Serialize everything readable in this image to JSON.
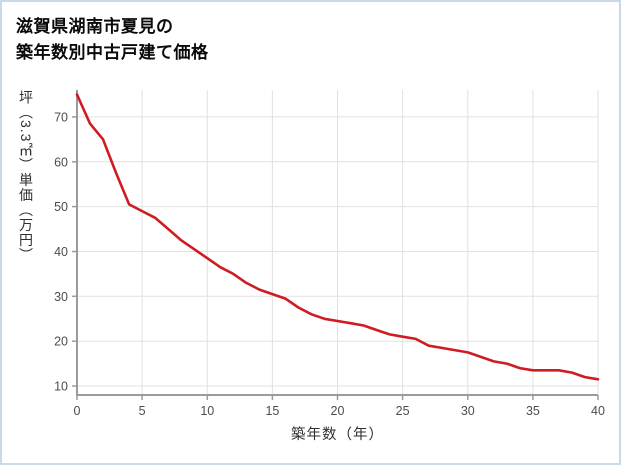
{
  "title": {
    "line1": "滋賀県湖南市夏見の",
    "line2": "築年数別中古戸建て価格"
  },
  "chart_data": {
    "type": "line",
    "title": "滋賀県湖南市夏見の築年数別中古戸建て価格",
    "xlabel": "築年数（年）",
    "ylabel": "坪（3.3㎡）単価（万円）",
    "x": [
      0,
      1,
      2,
      3,
      4,
      5,
      6,
      7,
      8,
      9,
      10,
      11,
      12,
      13,
      14,
      15,
      16,
      17,
      18,
      19,
      20,
      21,
      22,
      23,
      24,
      25,
      26,
      27,
      28,
      29,
      30,
      31,
      32,
      33,
      34,
      35,
      36,
      37,
      38,
      39,
      40
    ],
    "values": [
      75,
      68.5,
      65,
      57.5,
      50.5,
      49,
      47.5,
      45,
      42.5,
      40.5,
      38.5,
      36.5,
      35,
      33,
      31.5,
      30.5,
      29.5,
      27.5,
      26,
      25,
      24.5,
      24,
      23.5,
      22.5,
      21.5,
      21,
      20.5,
      19,
      18.5,
      18,
      17.5,
      16.5,
      15.5,
      15,
      14,
      13.5,
      13.5,
      13.5,
      13,
      12,
      11.5
    ],
    "xticks": [
      0,
      5,
      10,
      15,
      20,
      25,
      30,
      35,
      40
    ],
    "yticks": [
      10,
      20,
      30,
      40,
      50,
      60,
      70
    ],
    "xlim": [
      0,
      40
    ],
    "ylim": [
      8,
      76
    ],
    "grid": true,
    "legend": "none",
    "line_color": "#cf1b22",
    "grid_color": "#e1e1e1",
    "axis_color": "#9b9b9b",
    "tick_label_color": "#4d4d4d"
  }
}
